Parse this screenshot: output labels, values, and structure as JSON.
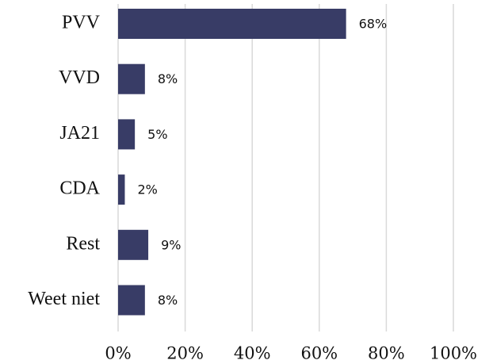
{
  "chart_data": {
    "type": "bar",
    "orientation": "horizontal",
    "categories": [
      "PVV",
      "VVD",
      "JA21",
      "CDA",
      "Rest",
      "Weet niet"
    ],
    "values": [
      68,
      8,
      5,
      2,
      9,
      8
    ],
    "value_labels": [
      "68%",
      "8%",
      "5%",
      "2%",
      "9%",
      "8%"
    ],
    "color": "#383c66",
    "xlim": [
      0,
      100
    ],
    "xticks": [
      {
        "value": 0,
        "label": "0%"
      },
      {
        "value": 20,
        "label": "20%"
      },
      {
        "value": 40,
        "label": "40%"
      },
      {
        "value": 60,
        "label": "60%"
      },
      {
        "value": 80,
        "label": "80%"
      },
      {
        "value": 100,
        "label": "100%"
      }
    ],
    "grid": true
  }
}
